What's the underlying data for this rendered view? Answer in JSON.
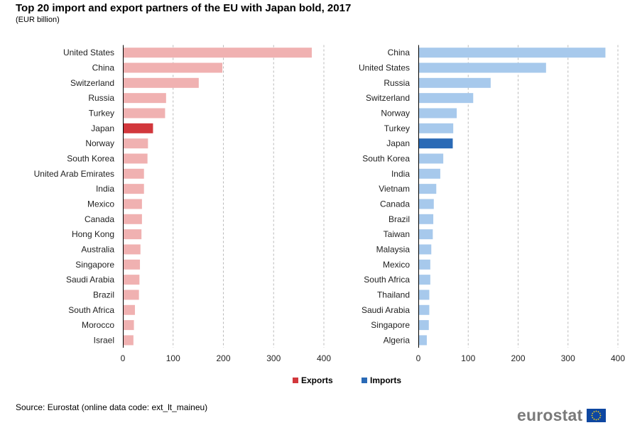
{
  "title": "Top 20 import and export partners of the EU with Japan bold, 2017",
  "subtitle": "(EUR billion)",
  "source": "Source: Eurostat (online data code: ext_lt_maineu)",
  "logo_text": "eurostat",
  "legend": [
    {
      "label": "Exports",
      "color": "#d2373c"
    },
    {
      "label": "Imports",
      "color": "#2a6ab6"
    }
  ],
  "chart_data": [
    {
      "type": "bar",
      "orientation": "horizontal",
      "series_name": "Exports",
      "color": "#f0b1b1",
      "highlight_color": "#d2373c",
      "highlight": "Japan",
      "xlim": [
        0,
        400
      ],
      "xticks": [
        0,
        100,
        200,
        300,
        400
      ],
      "grid": true,
      "categories": [
        "United States",
        "China",
        "Switzerland",
        "Russia",
        "Turkey",
        "Japan",
        "Norway",
        "South Korea",
        "United Arab Emirates",
        "India",
        "Mexico",
        "Canada",
        "Hong Kong",
        "Australia",
        "Singapore",
        "Saudi Arabia",
        "Brazil",
        "South Africa",
        "Morocco",
        "Israel"
      ],
      "values": [
        376,
        198,
        151,
        86,
        84,
        60,
        50,
        49,
        42,
        42,
        38,
        38,
        37,
        35,
        34,
        33,
        32,
        24,
        22,
        21
      ]
    },
    {
      "type": "bar",
      "orientation": "horizontal",
      "series_name": "Imports",
      "color": "#a7c9ec",
      "highlight_color": "#2a6ab6",
      "highlight": "Japan",
      "xlim": [
        0,
        400
      ],
      "xticks": [
        0,
        100,
        200,
        300,
        400
      ],
      "grid": true,
      "categories": [
        "China",
        "United States",
        "Russia",
        "Switzerland",
        "Norway",
        "Turkey",
        "Japan",
        "South Korea",
        "India",
        "Vietnam",
        "Canada",
        "Brazil",
        "Taiwan",
        "Malaysia",
        "Mexico",
        "South Africa",
        "Thailand",
        "Saudi Arabia",
        "Singapore",
        "Algeria"
      ],
      "values": [
        375,
        256,
        145,
        110,
        77,
        70,
        69,
        50,
        44,
        36,
        31,
        30,
        29,
        26,
        24,
        24,
        22,
        22,
        21,
        17
      ]
    }
  ]
}
